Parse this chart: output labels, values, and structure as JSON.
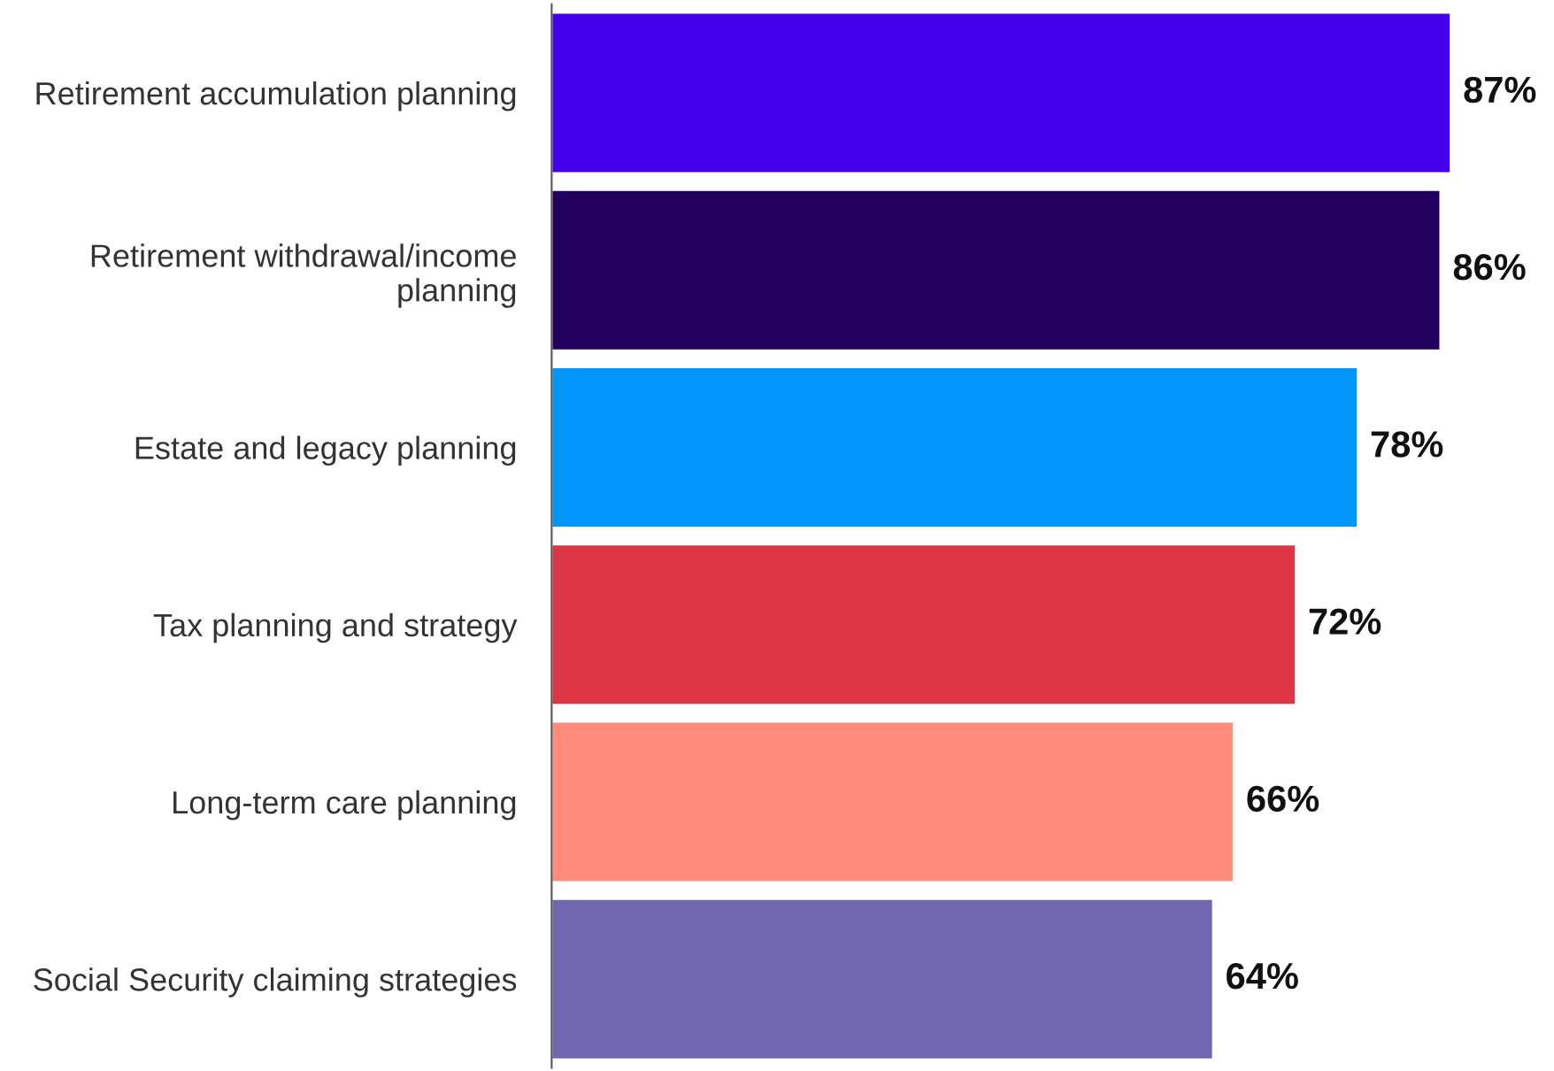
{
  "chart_data": {
    "type": "bar",
    "orientation": "horizontal",
    "categories": [
      "Retirement accumulation planning",
      "Retirement withdrawal/income\nplanning",
      "Estate and legacy planning",
      "Tax planning and strategy",
      "Long-term care planning",
      "Social Security claiming strategies"
    ],
    "values": [
      87,
      86,
      78,
      72,
      66,
      64
    ],
    "colors": [
      "#4400ea",
      "#22005e",
      "#0096fa",
      "#dc3545",
      "#ff8c7a",
      "#6f68b0"
    ],
    "value_labels": [
      "87%",
      "86%",
      "78%",
      "72%",
      "66%",
      "64%"
    ],
    "grid": false,
    "legend": false,
    "tick_labels": "y"
  }
}
